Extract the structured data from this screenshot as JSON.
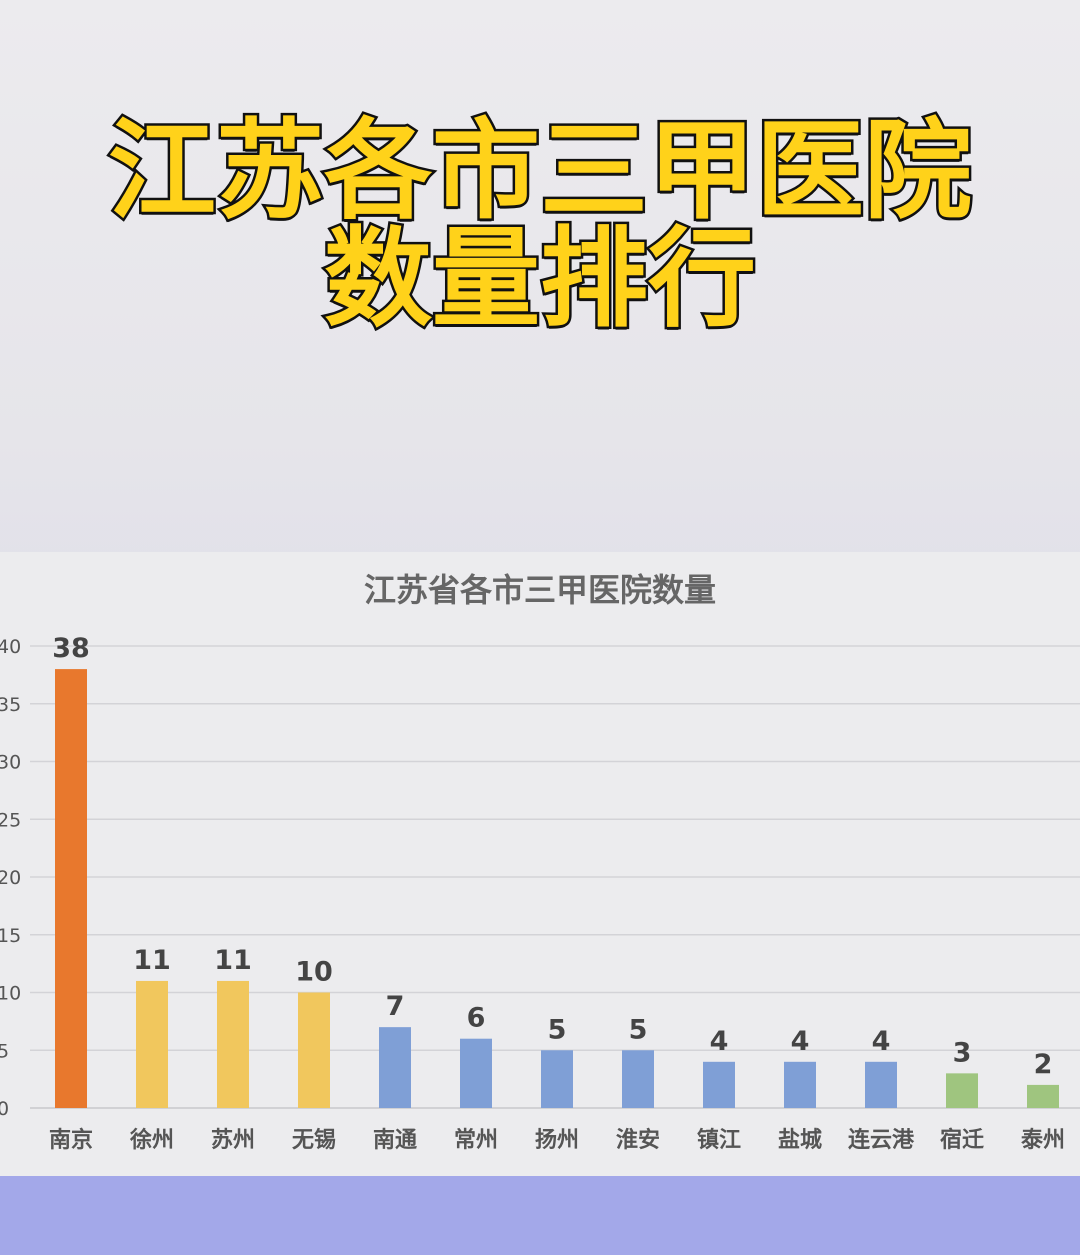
{
  "headline": {
    "line1": "江苏各市三甲医院",
    "line2": "数量排行"
  },
  "colors": {
    "top": "#e8782d",
    "second_tier": "#f1c75d",
    "middle_tier": "#7f9fd6",
    "low_tier": "#9fc57f",
    "gridline": "#d3d3d7"
  },
  "chart_data": {
    "type": "bar",
    "title": "江苏省各市三甲医院数量",
    "xlabel": "",
    "ylabel": "",
    "ylim": [
      0,
      40
    ],
    "yticks": [
      "0",
      "5",
      "10",
      "15",
      "20",
      "25",
      "30",
      "35",
      "40"
    ],
    "grid": true,
    "legend": "none",
    "categories": [
      "南京",
      "徐州",
      "苏州",
      "无锡",
      "南通",
      "常州",
      "扬州",
      "淮安",
      "镇江",
      "盐城",
      "连云港",
      "宿迁",
      "泰州"
    ],
    "values": [
      38,
      11,
      11,
      10,
      7,
      6,
      5,
      5,
      4,
      4,
      4,
      3,
      2
    ],
    "data_labels": [
      "38",
      "11",
      "11",
      "10",
      "7",
      "6",
      "5",
      "5",
      "4",
      "4",
      "4",
      "3",
      "2"
    ],
    "bar_colors": [
      "top",
      "second_tier",
      "second_tier",
      "second_tier",
      "middle_tier",
      "middle_tier",
      "middle_tier",
      "middle_tier",
      "middle_tier",
      "middle_tier",
      "middle_tier",
      "low_tier",
      "low_tier"
    ]
  }
}
